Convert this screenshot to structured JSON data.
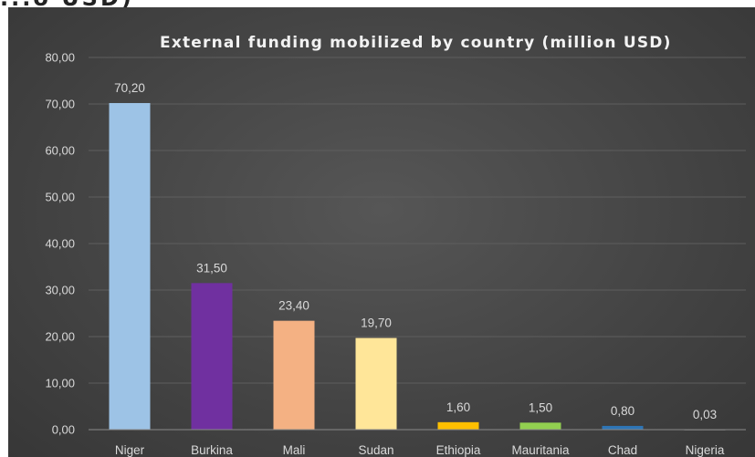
{
  "header_fragment": "...o USD)",
  "chart_data": {
    "type": "bar",
    "title": "External funding mobilized by country (million USD)",
    "categories": [
      "Niger",
      "Burkina",
      "Mali",
      "Sudan",
      "Ethiopia",
      "Mauritania",
      "Chad",
      "Nigeria"
    ],
    "values": [
      70.2,
      31.5,
      23.4,
      19.7,
      1.6,
      1.5,
      0.8,
      0.03
    ],
    "value_labels": [
      "70,20",
      "31,50",
      "23,40",
      "19,70",
      "1,60",
      "1,50",
      "0,80",
      "0,03"
    ],
    "colors": [
      "#9dc3e6",
      "#7030a0",
      "#f4b183",
      "#ffe699",
      "#ffc000",
      "#92d050",
      "#2e75b6",
      "#a5a5a5"
    ],
    "y_ticks": [
      "0,00",
      "10,00",
      "20,00",
      "30,00",
      "40,00",
      "50,00",
      "60,00",
      "70,00",
      "80,00"
    ],
    "ylim": [
      0,
      80
    ],
    "grid": true,
    "legend": "none"
  }
}
